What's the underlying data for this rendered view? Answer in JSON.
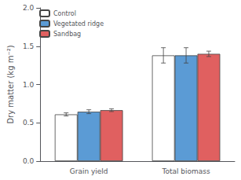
{
  "chart_data": {
    "type": "bar",
    "categories": [
      "Grain yield",
      "Total biomass"
    ],
    "series": [
      {
        "name": "Control",
        "color": "#ffffff",
        "values": [
          0.61,
          1.38
        ],
        "errors": [
          0.02,
          0.1
        ]
      },
      {
        "name": "Vegetated ridge",
        "color": "#5b9bd5",
        "values": [
          0.645,
          1.38
        ],
        "errors": [
          0.025,
          0.1
        ]
      },
      {
        "name": "Sandbag",
        "color": "#e06060",
        "values": [
          0.665,
          1.4
        ],
        "errors": [
          0.018,
          0.035
        ]
      }
    ],
    "ylabel": "Dry matter (kg m⁻²)",
    "ylim": [
      0.0,
      2.0
    ],
    "yticks": [
      {
        "value": 0.0,
        "label": "0.0"
      },
      {
        "value": 0.5,
        "label": "0.5"
      },
      {
        "value": 1.0,
        "label": "1.0"
      },
      {
        "value": 1.5,
        "label": "1.5"
      },
      {
        "value": 2.0,
        "label": "2.0"
      }
    ],
    "grid": false,
    "legend": "upper left"
  }
}
